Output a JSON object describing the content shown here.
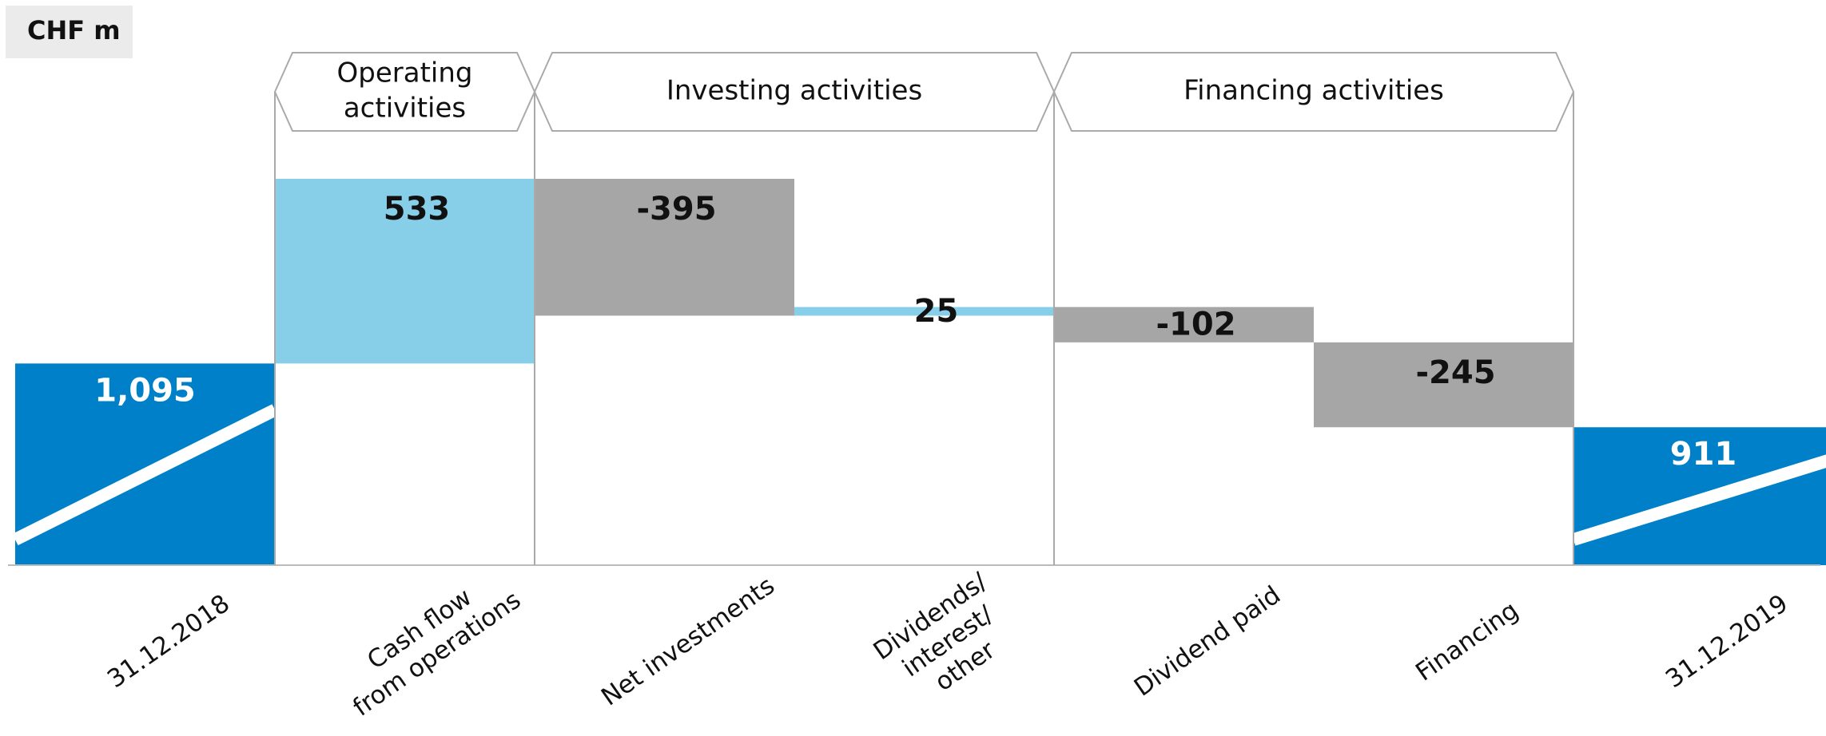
{
  "chart_data": {
    "type": "waterfall",
    "title": "CHF m",
    "categories": [
      [
        "31.12.2018"
      ],
      [
        "Cash flow",
        "from operations"
      ],
      [
        "Net investments"
      ],
      [
        "Dividends/",
        "interest/",
        "other"
      ],
      [
        "Dividend paid"
      ],
      [
        "Financing"
      ],
      [
        "31.12.2019"
      ]
    ],
    "values": [
      1095,
      533,
      -395,
      25,
      -102,
      -245,
      911
    ],
    "value_labels": [
      "1,095",
      "533",
      "-395",
      "25",
      "-102",
      "-245",
      "911"
    ],
    "is_total": [
      true,
      false,
      false,
      false,
      false,
      false,
      true
    ],
    "colors": {
      "total": "#0080c8",
      "increase": "#87cfe8",
      "decrease": "#a6a6a6"
    },
    "groups": [
      {
        "name": [
          "Operating",
          "activities"
        ],
        "categories": [
          1
        ]
      },
      {
        "name": [
          "Investing activities"
        ],
        "categories": [
          2,
          3
        ]
      },
      {
        "name": [
          "Financing activities"
        ],
        "categories": [
          4,
          5
        ]
      }
    ],
    "ylim": [
      513,
      1628
    ],
    "axis_break": true
  }
}
